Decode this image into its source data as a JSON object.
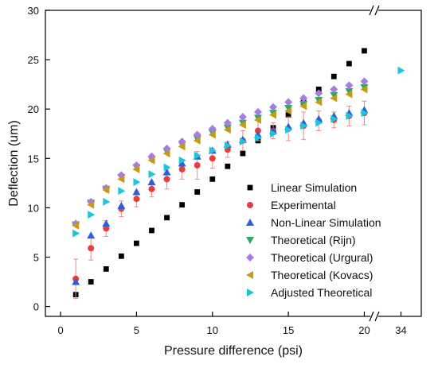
{
  "chart_data": {
    "type": "scatter",
    "xlabel": "Pressure difference (psi)",
    "ylabel": "Deflection (um)",
    "xlim": [
      -1,
      20.5
    ],
    "xlim_break": [
      34,
      34
    ],
    "axis_break": "double slash between 20 and 34 on the x axis",
    "ylim": [
      -1,
      30
    ],
    "x_ticks": [
      0,
      5,
      10,
      15,
      20,
      34
    ],
    "y_ticks": [
      0,
      5,
      10,
      15,
      20,
      25,
      30
    ],
    "grid": false,
    "legend_position": "lower-right",
    "x": [
      1,
      2,
      3,
      4,
      5,
      6,
      7,
      8,
      9,
      10,
      11,
      12,
      13,
      14,
      15,
      16,
      17,
      18,
      19,
      20
    ],
    "series": [
      {
        "name": "Linear Simulation",
        "marker": "square",
        "color": "#000000",
        "values": [
          1.2,
          2.5,
          3.8,
          5.1,
          6.4,
          7.7,
          9.0,
          10.3,
          11.6,
          12.9,
          14.2,
          15.5,
          16.8,
          18.1,
          19.4,
          20.7,
          22.0,
          23.3,
          24.6,
          25.9
        ]
      },
      {
        "name": "Experimental",
        "marker": "circle",
        "color": "#ea3c3c",
        "values": [
          2.8,
          5.9,
          7.9,
          9.9,
          10.9,
          11.9,
          12.9,
          13.9,
          14.3,
          15.0,
          15.9,
          16.8,
          17.8,
          17.8,
          18.0,
          18.3,
          18.8,
          18.9,
          19.3,
          19.6
        ],
        "error": [
          2.0,
          1.2,
          0.8,
          0.8,
          0.8,
          0.8,
          1.0,
          1.0,
          1.4,
          1.0,
          0.8,
          1.0,
          1.0,
          0.8,
          1.2,
          1.4,
          1.0,
          0.8,
          1.0,
          1.2
        ]
      },
      {
        "name": "Non-Linear Simulation",
        "marker": "triangle-up",
        "color": "#2e5fd6",
        "values": [
          2.5,
          7.2,
          8.4,
          10.2,
          11.6,
          12.6,
          13.6,
          14.5,
          15.2,
          15.8,
          16.4,
          16.9,
          17.4,
          17.8,
          18.2,
          18.6,
          19.0,
          19.3,
          19.6,
          19.9
        ]
      },
      {
        "name": "Theoretical (Rijn)",
        "marker": "triangle-down",
        "color": "#2fa968",
        "values": [
          8.3,
          10.5,
          11.9,
          13.1,
          14.1,
          14.9,
          15.7,
          16.4,
          17.0,
          17.6,
          18.1,
          18.6,
          19.1,
          19.6,
          20.1,
          20.5,
          20.9,
          21.4,
          21.8,
          22.2
        ]
      },
      {
        "name": "Theoretical (Urgural)",
        "marker": "diamond",
        "color": "#a77be0",
        "values": [
          8.4,
          10.6,
          12.0,
          13.3,
          14.3,
          15.2,
          16.0,
          16.7,
          17.4,
          18.0,
          18.6,
          19.2,
          19.7,
          20.2,
          20.7,
          21.1,
          21.6,
          22.0,
          22.4,
          22.8
        ]
      },
      {
        "name": "Theoretical (Kovacs)",
        "marker": "triangle-left",
        "color": "#c79a12",
        "values": [
          8.2,
          10.3,
          11.8,
          12.9,
          13.9,
          14.8,
          15.5,
          16.2,
          16.8,
          17.4,
          17.9,
          18.4,
          18.9,
          19.4,
          19.8,
          20.3,
          20.7,
          21.1,
          21.5,
          22.0
        ]
      },
      {
        "name": "Adjusted Theoretical",
        "marker": "triangle-right",
        "color": "#1ec6dc",
        "values": [
          7.4,
          9.3,
          10.6,
          11.7,
          12.6,
          13.4,
          14.1,
          14.8,
          15.3,
          15.8,
          16.3,
          16.7,
          17.1,
          17.5,
          17.9,
          18.3,
          18.6,
          19.0,
          19.3,
          19.6
        ],
        "extra_points": [
          {
            "x": 34,
            "y": 23.9
          }
        ]
      }
    ]
  }
}
